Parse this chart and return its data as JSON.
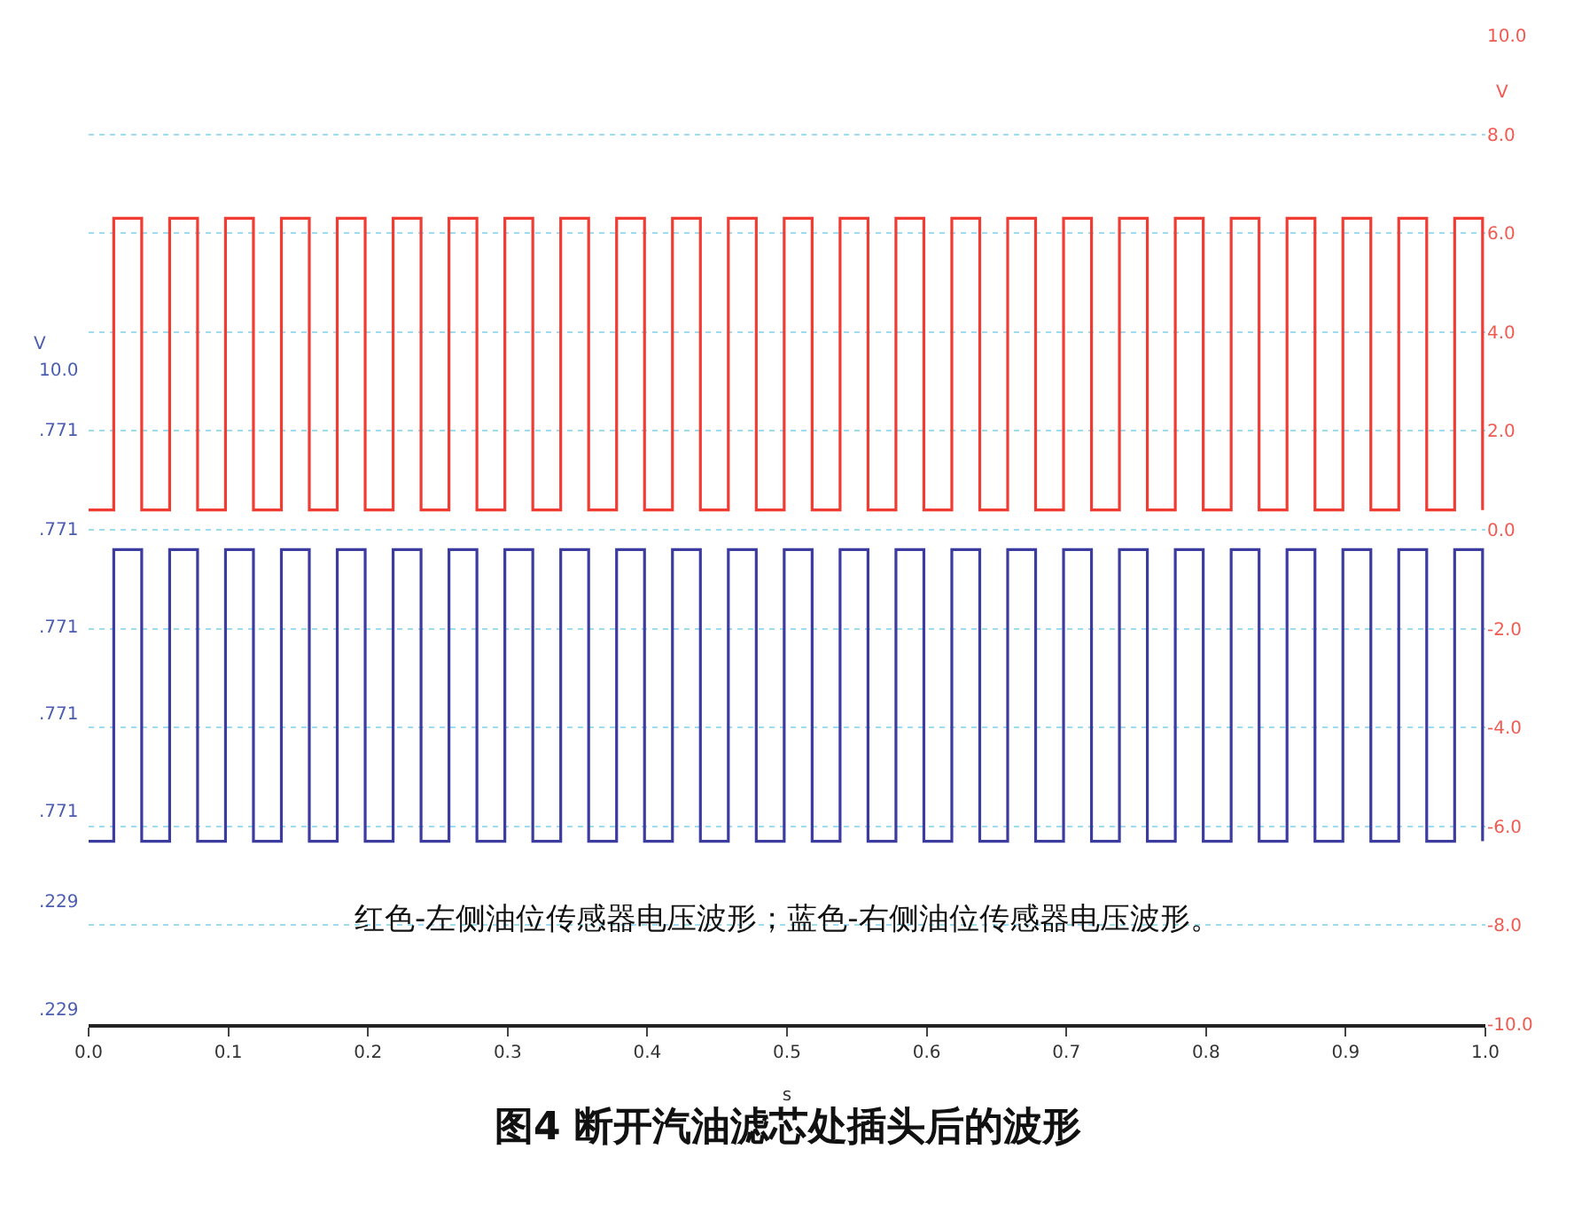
{
  "chart_data": {
    "type": "line",
    "title": "图4 断开汽油滤芯处插头后的波形",
    "xlabel": "s",
    "ylabel": "V",
    "y2label": "V",
    "annotations": [
      "红色-左侧油位传感器电压波形；蓝色-右侧油位传感器电压波形。",
      "10.0",
      ".771",
      ".771",
      ".771",
      ".771",
      ".771",
      ".229",
      ".229"
    ],
    "x": [
      0,
      0.018,
      0.018,
      0.038,
      0.038,
      0.058,
      0.058,
      0.078,
      0.078,
      0.098,
      0.098,
      0.118,
      0.118,
      0.138,
      0.138,
      0.158,
      0.158,
      0.178,
      0.178,
      0.198,
      0.198,
      0.218,
      0.218,
      0.238,
      0.238,
      0.258,
      0.258,
      0.278,
      0.278,
      0.298,
      0.298,
      0.318,
      0.318,
      0.338,
      0.338,
      0.358,
      0.358,
      0.378,
      0.378,
      0.398,
      0.398,
      0.418,
      0.418,
      0.438,
      0.438,
      0.458,
      0.458,
      0.478,
      0.478,
      0.498,
      0.498,
      0.518,
      0.518,
      0.538,
      0.538,
      0.558,
      0.558,
      0.578,
      0.578,
      0.598,
      0.598,
      0.618,
      0.618,
      0.638,
      0.638,
      0.658,
      0.658,
      0.678,
      0.678,
      0.698,
      0.698,
      0.718,
      0.718,
      0.738,
      0.738,
      0.758,
      0.758,
      0.778,
      0.778,
      0.798,
      0.798,
      0.818,
      0.818,
      0.838,
      0.838,
      0.858,
      0.858,
      0.878,
      0.878,
      0.898,
      0.898,
      0.918,
      0.918,
      0.938,
      0.938,
      0.958,
      0.958,
      0.978,
      0.978,
      0.998,
      0.998
    ],
    "series": [
      {
        "color": "#f03c32",
        "axis": "y2",
        "values": [
          0.4,
          0.4,
          6.3,
          6.3,
          0.4,
          0.4,
          6.3,
          6.3,
          0.4,
          0.4,
          6.3,
          6.3,
          0.4,
          0.4,
          6.3,
          6.3,
          0.4,
          0.4,
          6.3,
          6.3,
          0.4,
          0.4,
          6.3,
          6.3,
          0.4,
          0.4,
          6.3,
          6.3,
          0.4,
          0.4,
          6.3,
          6.3,
          0.4,
          0.4,
          6.3,
          6.3,
          0.4,
          0.4,
          6.3,
          6.3,
          0.4,
          0.4,
          6.3,
          6.3,
          0.4,
          0.4,
          6.3,
          6.3,
          0.4,
          0.4,
          6.3,
          6.3,
          0.4,
          0.4,
          6.3,
          6.3,
          0.4,
          0.4,
          6.3,
          6.3,
          0.4,
          0.4,
          6.3,
          6.3,
          0.4,
          0.4,
          6.3,
          6.3,
          0.4,
          0.4,
          6.3,
          6.3,
          0.4,
          0.4,
          6.3,
          6.3,
          0.4,
          0.4,
          6.3,
          6.3,
          0.4,
          0.4,
          6.3,
          6.3,
          0.4,
          0.4,
          6.3,
          6.3,
          0.4,
          0.4,
          6.3,
          6.3,
          0.4,
          0.4,
          6.3,
          6.3,
          0.4,
          0.4,
          6.3,
          6.3,
          0.4
        ]
      },
      {
        "color": "#3c3ca0",
        "axis": "y2",
        "values": [
          -6.3,
          -6.3,
          -0.4,
          -0.4,
          -6.3,
          -6.3,
          -0.4,
          -0.4,
          -6.3,
          -6.3,
          -0.4,
          -0.4,
          -6.3,
          -6.3,
          -0.4,
          -0.4,
          -6.3,
          -6.3,
          -0.4,
          -0.4,
          -6.3,
          -6.3,
          -0.4,
          -0.4,
          -6.3,
          -6.3,
          -0.4,
          -0.4,
          -6.3,
          -6.3,
          -0.4,
          -0.4,
          -6.3,
          -6.3,
          -0.4,
          -0.4,
          -6.3,
          -6.3,
          -0.4,
          -0.4,
          -6.3,
          -6.3,
          -0.4,
          -0.4,
          -6.3,
          -6.3,
          -0.4,
          -0.4,
          -6.3,
          -6.3,
          -0.4,
          -0.4,
          -6.3,
          -6.3,
          -0.4,
          -0.4,
          -6.3,
          -6.3,
          -0.4,
          -0.4,
          -6.3,
          -6.3,
          -0.4,
          -0.4,
          -6.3,
          -6.3,
          -0.4,
          -0.4,
          -6.3,
          -6.3,
          -0.4,
          -0.4,
          -6.3,
          -6.3,
          -0.4,
          -0.4,
          -6.3,
          -6.3,
          -0.4,
          -0.4,
          -6.3,
          -6.3,
          -0.4,
          -0.4,
          -6.3,
          -6.3,
          -0.4,
          -0.4,
          -6.3,
          -6.3,
          -0.4,
          -0.4,
          -6.3,
          -6.3,
          -0.4,
          -0.4,
          -6.3,
          -6.3,
          -0.4,
          -0.4,
          -6.3
        ]
      }
    ],
    "xlim": [
      0,
      1.0
    ],
    "xticks": [
      {
        "value": 0,
        "label": "0.0"
      },
      {
        "value": 0.1,
        "label": "0.1"
      },
      {
        "value": 0.2,
        "label": "0.2"
      },
      {
        "value": 0.3,
        "label": "0.3"
      },
      {
        "value": 0.4,
        "label": "0.4"
      },
      {
        "value": 0.5,
        "label": "0.5"
      },
      {
        "value": 0.6,
        "label": "0.6"
      },
      {
        "value": 0.7,
        "label": "0.7"
      },
      {
        "value": 0.8,
        "label": "0.8"
      },
      {
        "value": 0.9,
        "label": "0.9"
      },
      {
        "value": 1,
        "label": "1.0"
      }
    ],
    "y2lim": [
      -10,
      10
    ],
    "y2ticks": [
      {
        "value": 10,
        "label": "10.0"
      },
      {
        "value": 8,
        "label": "8.0"
      },
      {
        "value": 6,
        "label": "6.0"
      },
      {
        "value": 4,
        "label": "4.0"
      },
      {
        "value": 2,
        "label": "2.0"
      },
      {
        "value": 0,
        "label": "0.0"
      },
      {
        "value": -2,
        "label": "-2.0"
      },
      {
        "value": -4,
        "label": "-4.0"
      },
      {
        "value": -6,
        "label": "-6.0"
      },
      {
        "value": -8,
        "label": "-8.0"
      },
      {
        "value": -10,
        "label": "-10.0"
      }
    ],
    "grid": "y",
    "marker": "none",
    "line_style": "solid"
  }
}
